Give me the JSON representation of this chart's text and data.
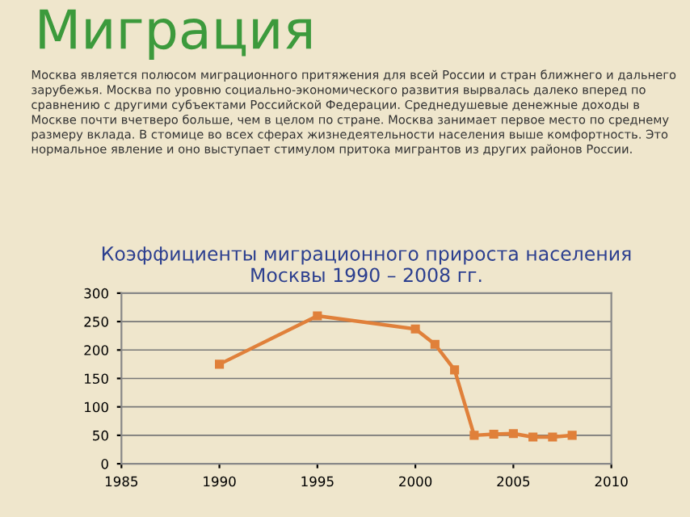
{
  "chart_data": {
    "type": "line",
    "title": "Коэффициенты миграционного прироста населения\nМосквы 1990 – 2008 гг.",
    "annotations": [
      "Миграция",
      "Москва является полюсом миграционного притяжения для всей России и стран ближнего и дальнего зарубежья. Москва по уровню социально-экономического развития вырвалась далеко вперед по сравнению с другими субъектами Российской Федерации. Среднедушевые денежные доходы в Москве почти вчетверо больше, чем в целом по стране. Москва занимает первое место по среднему размеру вклада. В стомице во всех сферах жизнедеятельности населения выше комфортность. Это нормальное явление и оно выступает стимулом притока мигрантов из других районов России."
    ],
    "x": [
      1990,
      1995,
      2000,
      2001,
      2002,
      2003,
      2004,
      2005,
      2006,
      2007,
      2008
    ],
    "series": [
      {
        "color": "#e0803a",
        "values": [
          175,
          260,
          237,
          210,
          165,
          50,
          52,
          53,
          47,
          47,
          50
        ]
      }
    ],
    "xlim": [
      1985,
      2010
    ],
    "xticks": [
      1985,
      1990,
      1995,
      2000,
      2005,
      2010
    ],
    "ylim": [
      0,
      300
    ],
    "yticks": [
      0,
      50,
      100,
      150,
      200,
      250,
      300
    ],
    "grid": "y",
    "marker": "square",
    "line_style": "solid"
  }
}
